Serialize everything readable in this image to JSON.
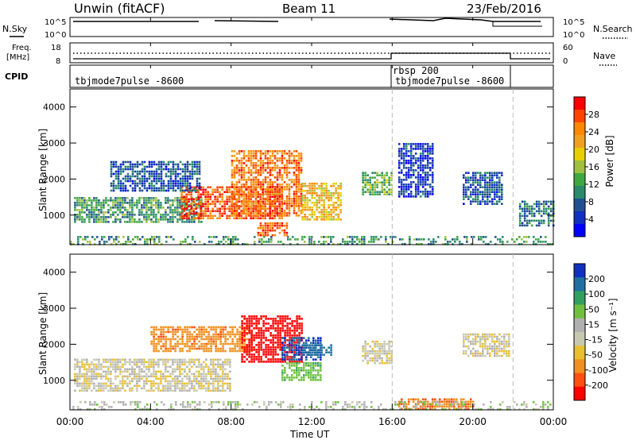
{
  "header": {
    "station": "Unwin (fitACF)",
    "beam": "Beam 11",
    "date": "23/Feb/2016"
  },
  "top_panels": {
    "nsky": {
      "label": "N.Sky",
      "ticks": [
        "10^5",
        "10^0"
      ],
      "right_label": "N.Search",
      "right_ticks": [
        "10^5",
        "10^0"
      ]
    },
    "freq": {
      "label_line1": "Freq.",
      "label_line2": "[MHz]",
      "ticks": [
        "18",
        "8"
      ],
      "right_label": "Nave",
      "right_ticks": [
        "60",
        "0"
      ]
    },
    "cpid": {
      "label": "CPID",
      "segments": [
        {
          "start": 0,
          "end": 16,
          "name": "tbjmode7pulse -8600"
        },
        {
          "start": 16,
          "end": 22,
          "name": "rbsp 200",
          "name2": "tbjmode7pulse -8600"
        },
        {
          "start": 22,
          "end": 24,
          "name": ""
        }
      ]
    }
  },
  "colorbars": {
    "power": {
      "label": "Power [dB]",
      "ticks": [
        "28",
        "24",
        "20",
        "16",
        "12",
        "8",
        "4"
      ],
      "colors": [
        "#ff0000",
        "#ff4400",
        "#ff8800",
        "#f0a020",
        "#e8d000",
        "#a0c040",
        "#40a840",
        "#2a8a6a",
        "#205090",
        "#1030c0",
        "#0000ff"
      ]
    },
    "velocity": {
      "label": "Velocity [m s⁻¹]",
      "ticks": [
        "200",
        "100",
        "50",
        "15",
        "-15",
        "-50",
        "-100",
        "-200"
      ],
      "colors": [
        "#1030c0",
        "#2070a0",
        "#30a060",
        "#70c040",
        "#b0b0b0",
        "#c8c8b0",
        "#e8c030",
        "#f09020",
        "#ff5010",
        "#ff0000"
      ]
    }
  },
  "axes": {
    "xlabel": "Time UT",
    "xticks": [
      "00:00",
      "04:00",
      "08:00",
      "12:00",
      "16:00",
      "20:00",
      "00:00"
    ],
    "ylabel": "Slant Range [km]",
    "yticks": [
      "4000",
      "3000",
      "2000",
      "1000"
    ]
  },
  "chart_data": [
    {
      "type": "heatmap",
      "title": "Power",
      "xlabel": "Time UT",
      "ylabel": "Slant Range [km]",
      "xlim": [
        0,
        24
      ],
      "ylim": [
        180,
        4500
      ],
      "colorbar_label": "Power [dB]",
      "colorbar_ticks": [
        28,
        24,
        20,
        16,
        12,
        8,
        4
      ],
      "mode_change_times": [
        16,
        22
      ],
      "regions": [
        {
          "t0": 0.2,
          "t1": 6.5,
          "r0": 800,
          "r1": 1500,
          "value": 12
        },
        {
          "t0": 5.5,
          "t1": 10.5,
          "r0": 900,
          "r1": 1800,
          "value": 26
        },
        {
          "t0": 8.0,
          "t1": 11.5,
          "r0": 1000,
          "r1": 2800,
          "value": 24
        },
        {
          "t0": 11.5,
          "t1": 13.5,
          "r0": 900,
          "r1": 1900,
          "value": 20
        },
        {
          "t0": 2.0,
          "t1": 6.5,
          "r0": 1700,
          "r1": 2500,
          "value": 8
        },
        {
          "t0": 9.3,
          "t1": 10.8,
          "r0": 450,
          "r1": 800,
          "value": 26
        },
        {
          "t0": 14.5,
          "t1": 16.0,
          "r0": 1600,
          "r1": 2200,
          "value": 14
        },
        {
          "t0": 16.3,
          "t1": 18.0,
          "r0": 1500,
          "r1": 3000,
          "value": 6
        },
        {
          "t0": 19.5,
          "t1": 21.5,
          "r0": 1300,
          "r1": 2200,
          "value": 8
        },
        {
          "t0": 22.3,
          "t1": 24.0,
          "r0": 700,
          "r1": 1400,
          "value": 10
        },
        {
          "t0": 0.0,
          "t1": 24.0,
          "r0": 180,
          "r1": 420,
          "value": 12
        }
      ]
    },
    {
      "type": "heatmap",
      "title": "Velocity",
      "xlabel": "Time UT",
      "ylabel": "Slant Range [km]",
      "xlim": [
        0,
        24
      ],
      "ylim": [
        180,
        4500
      ],
      "colorbar_label": "Velocity [m s⁻¹]",
      "colorbar_ticks": [
        200,
        100,
        50,
        15,
        -15,
        -50,
        -100,
        -200
      ],
      "mode_change_times": [
        16,
        22
      ],
      "regions": [
        {
          "t0": 0.2,
          "t1": 8.0,
          "r0": 700,
          "r1": 1600,
          "value": 0
        },
        {
          "t0": 4.0,
          "t1": 9.0,
          "r0": 1800,
          "r1": 2500,
          "value": -60
        },
        {
          "t0": 8.5,
          "t1": 11.5,
          "r0": 1500,
          "r1": 2800,
          "value": -150
        },
        {
          "t0": 10.5,
          "t1": 12.5,
          "r0": 1600,
          "r1": 2200,
          "value": 200
        },
        {
          "t0": 11.5,
          "t1": 13.0,
          "r0": 1700,
          "r1": 2000,
          "value": 150
        },
        {
          "t0": 10.5,
          "t1": 12.5,
          "r0": 1000,
          "r1": 1500,
          "value": 60
        },
        {
          "t0": 14.5,
          "t1": 16.0,
          "r0": 1500,
          "r1": 2100,
          "value": 0
        },
        {
          "t0": 19.5,
          "t1": 21.8,
          "r0": 1700,
          "r1": 2300,
          "value": 0
        },
        {
          "t0": 16.3,
          "t1": 20.0,
          "r0": 220,
          "r1": 500,
          "value": -70
        },
        {
          "t0": 0.0,
          "t1": 24.0,
          "r0": 180,
          "r1": 420,
          "value": 20
        }
      ]
    }
  ]
}
